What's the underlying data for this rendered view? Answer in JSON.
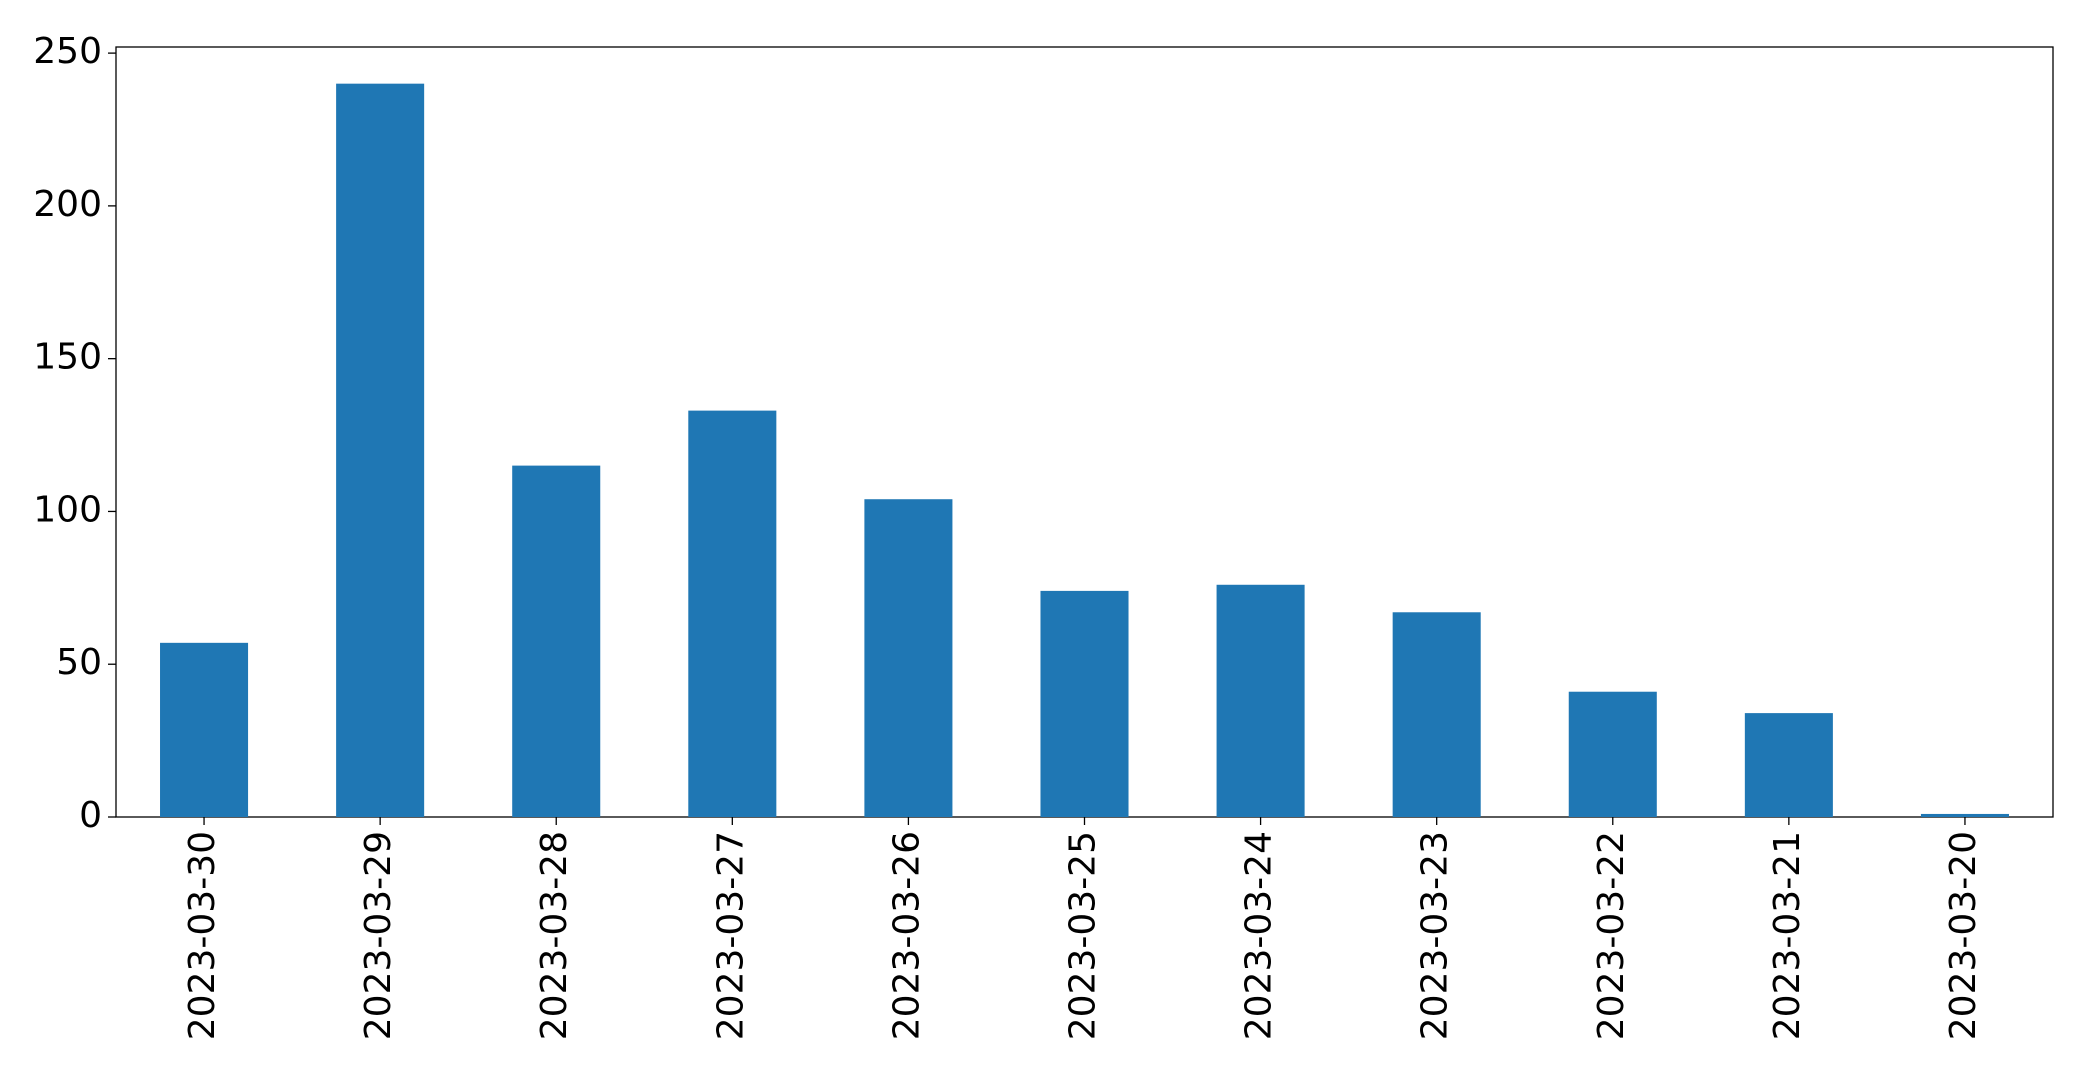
{
  "chart_data": {
    "type": "bar",
    "categories": [
      "2023-03-30",
      "2023-03-29",
      "2023-03-28",
      "2023-03-27",
      "2023-03-26",
      "2023-03-25",
      "2023-03-24",
      "2023-03-23",
      "2023-03-22",
      "2023-03-21",
      "2023-03-20"
    ],
    "values": [
      57,
      240,
      115,
      133,
      104,
      74,
      76,
      67,
      41,
      34,
      1
    ],
    "color": "#1f77b4",
    "ylim": [
      0,
      252
    ],
    "yticks": [
      0,
      50,
      100,
      150,
      200,
      250
    ],
    "grid": false
  }
}
